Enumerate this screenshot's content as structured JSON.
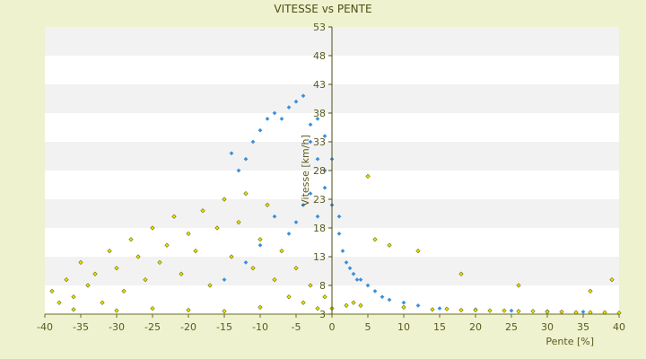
{
  "chart_data": {
    "type": "scatter",
    "title": "VITESSE vs PENTE",
    "xlabel": "Pente [%]",
    "ylabel": "Vitesse [km/h]",
    "xlim": [
      -40,
      40
    ],
    "ylim": [
      3,
      53
    ],
    "x_ticks": [
      -40,
      -35,
      -30,
      -25,
      -20,
      -15,
      -10,
      -5,
      0,
      5,
      10,
      15,
      20,
      25,
      30,
      35,
      40
    ],
    "y_ticks": [
      3,
      8,
      13,
      18,
      23,
      28,
      33,
      38,
      43,
      48,
      53
    ],
    "grid": "horizontal alternating bands",
    "legend": "none",
    "series": [
      {
        "color": "#3a8fd8",
        "marker": "small diamond",
        "points": [
          [
            -14,
            31
          ],
          [
            -13,
            28
          ],
          [
            -12,
            30
          ],
          [
            -11,
            33
          ],
          [
            -10,
            35
          ],
          [
            -9,
            37
          ],
          [
            -8,
            38
          ],
          [
            -7,
            37
          ],
          [
            -6,
            39
          ],
          [
            -5,
            40
          ],
          [
            -4,
            41
          ],
          [
            -3,
            36
          ],
          [
            -2,
            30
          ],
          [
            -1,
            28
          ],
          [
            -1,
            25
          ],
          [
            0,
            22
          ],
          [
            1,
            20
          ],
          [
            1,
            17
          ],
          [
            1.5,
            14
          ],
          [
            2,
            12
          ],
          [
            2.5,
            11
          ],
          [
            3,
            10
          ],
          [
            3.5,
            9
          ],
          [
            4,
            9
          ],
          [
            5,
            8
          ],
          [
            6,
            7
          ],
          [
            7,
            6
          ],
          [
            8,
            5.5
          ],
          [
            10,
            5
          ],
          [
            12,
            4.5
          ],
          [
            15,
            4
          ],
          [
            20,
            3.8
          ],
          [
            25,
            3.6
          ],
          [
            30,
            3.5
          ],
          [
            35,
            3.4
          ],
          [
            -3,
            24
          ],
          [
            -2,
            20
          ],
          [
            -4,
            22
          ],
          [
            -5,
            19
          ],
          [
            -6,
            17
          ],
          [
            -8,
            20
          ],
          [
            -10,
            15
          ],
          [
            -12,
            12
          ],
          [
            -15,
            9
          ],
          [
            -3,
            33
          ],
          [
            -2,
            37
          ],
          [
            -1,
            34
          ],
          [
            0,
            30
          ]
        ]
      },
      {
        "color": "#8c8c00",
        "marker": "small diamond",
        "points": [
          [
            -39,
            7
          ],
          [
            -38,
            5
          ],
          [
            -37,
            9
          ],
          [
            -36,
            6
          ],
          [
            -35,
            12
          ],
          [
            -34,
            8
          ],
          [
            -33,
            10
          ],
          [
            -32,
            5
          ],
          [
            -31,
            14
          ],
          [
            -30,
            11
          ],
          [
            -29,
            7
          ],
          [
            -28,
            16
          ],
          [
            -27,
            13
          ],
          [
            -26,
            9
          ],
          [
            -25,
            18
          ],
          [
            -24,
            12
          ],
          [
            -23,
            15
          ],
          [
            -22,
            20
          ],
          [
            -21,
            10
          ],
          [
            -20,
            17
          ],
          [
            -19,
            14
          ],
          [
            -18,
            21
          ],
          [
            -17,
            8
          ],
          [
            -16,
            18
          ],
          [
            -15,
            23
          ],
          [
            -14,
            13
          ],
          [
            -13,
            19
          ],
          [
            -12,
            24
          ],
          [
            -11,
            11
          ],
          [
            -10,
            16
          ],
          [
            -9,
            22
          ],
          [
            -8,
            9
          ],
          [
            -7,
            14
          ],
          [
            -6,
            6
          ],
          [
            -5,
            11
          ],
          [
            -4,
            5
          ],
          [
            -3,
            8
          ],
          [
            -2,
            4
          ],
          [
            -1,
            6
          ],
          [
            0,
            4
          ],
          [
            2,
            4.5
          ],
          [
            3,
            5
          ],
          [
            4,
            4.5
          ],
          [
            5,
            27
          ],
          [
            6,
            16
          ],
          [
            8,
            15
          ],
          [
            10,
            4.2
          ],
          [
            12,
            14
          ],
          [
            14,
            3.8
          ],
          [
            16,
            3.9
          ],
          [
            18,
            3.7
          ],
          [
            20,
            3.7
          ],
          [
            22,
            3.6
          ],
          [
            24,
            3.6
          ],
          [
            26,
            3.5
          ],
          [
            28,
            3.5
          ],
          [
            30,
            3.4
          ],
          [
            32,
            3.4
          ],
          [
            34,
            3.3
          ],
          [
            36,
            3.3
          ],
          [
            38,
            3.3
          ],
          [
            40,
            3.2
          ],
          [
            18,
            10
          ],
          [
            26,
            8
          ],
          [
            36,
            7
          ],
          [
            39,
            9
          ],
          [
            -36,
            3.8
          ],
          [
            -30,
            3.6
          ],
          [
            -25,
            4
          ],
          [
            -20,
            3.7
          ],
          [
            -15,
            3.5
          ],
          [
            -10,
            4.2
          ]
        ]
      }
    ]
  }
}
